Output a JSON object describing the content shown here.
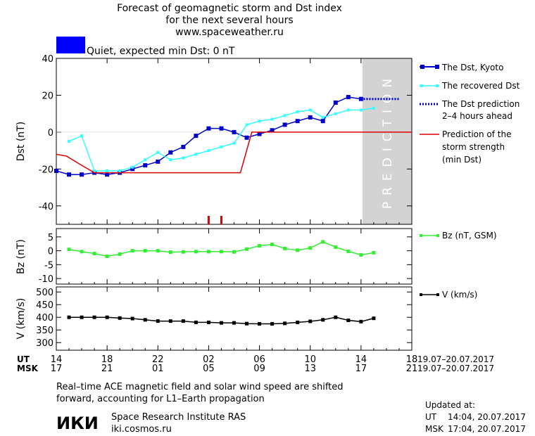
{
  "header": {
    "title_line1": "Forecast of geomagnetic storm and Dst index",
    "title_line2": "for the next several hours",
    "website": "www.spaceweather.ru"
  },
  "status": {
    "text": "Quiet, expected min Dst: 0 nT",
    "color": "#0000ff"
  },
  "prediction_label": "PREDICTION",
  "colors": {
    "dst_kyoto": "#0000cc",
    "dst_recovered": "#33ffff",
    "dst_prediction": "#0000cc",
    "storm_strength": "#e00000",
    "bz": "#33ee33",
    "v": "#000000",
    "prediction_shade": "#d3d3d3"
  },
  "time_axis": {
    "ut_label": "UT",
    "msk_label": "MSK",
    "ut_ticks": [
      "14",
      "18",
      "22",
      "02",
      "06",
      "10",
      "14",
      "18"
    ],
    "msk_ticks": [
      "17",
      "21",
      "01",
      "05",
      "09",
      "13",
      "17",
      "21"
    ],
    "ut_range": "19.07–20.07.2017",
    "msk_range": "19.07–20.07.2017"
  },
  "chart_data": [
    {
      "type": "line",
      "ylabel": "Dst (nT)",
      "ylim": [
        -50,
        40
      ],
      "yticks": [
        -40,
        -20,
        0,
        20,
        40
      ],
      "x_unit": "hours from 14:00 UT 19.07.2017",
      "xlim": [
        0,
        28
      ],
      "prediction_from_x": 24,
      "storm_markers_x": [
        12,
        13
      ],
      "series": [
        {
          "name": "The Dst, Kyoto",
          "x": [
            0,
            1,
            2,
            3,
            4,
            5,
            6,
            7,
            8,
            9,
            10,
            11,
            12,
            13,
            14,
            15,
            16,
            17,
            18,
            19,
            20,
            21,
            22,
            23,
            24
          ],
          "y": [
            -21,
            -23,
            -23,
            -22,
            -23,
            -22,
            -20,
            -18,
            -16,
            -11,
            -8,
            -2,
            2,
            2,
            0,
            -3,
            -1,
            1,
            4,
            6,
            8,
            6,
            16,
            19,
            18
          ]
        },
        {
          "name": "The recovered Dst",
          "x": [
            1,
            2,
            3,
            4,
            5,
            6,
            7,
            8,
            9,
            10,
            11,
            12,
            13,
            14,
            15,
            16,
            17,
            18,
            19,
            20,
            21,
            22,
            23,
            24,
            25
          ],
          "y": [
            -5,
            -2,
            -21,
            -21,
            -21,
            -19,
            -15,
            -11,
            -15,
            -14,
            -12,
            -10,
            -8,
            -6,
            4,
            6,
            7,
            9,
            11,
            12,
            8,
            10,
            12,
            12,
            13
          ]
        },
        {
          "name": "The Dst prediction 2–4 hours ahead",
          "x": [
            24,
            28
          ],
          "y": [
            18,
            18
          ]
        },
        {
          "name": "Prediction of the storm strength (min Dst)",
          "x": [
            0,
            0.8,
            2,
            3,
            14.5,
            15.4,
            28
          ],
          "y": [
            -12,
            -13,
            -18,
            -22,
            -22,
            0,
            0
          ]
        }
      ],
      "legend": [
        "The Dst, Kyoto",
        "The recovered Dst",
        "The Dst prediction",
        "2–4 hours ahead",
        "Prediction of the",
        "storm strength",
        "(min Dst)"
      ]
    },
    {
      "type": "line",
      "ylabel": "Bz (nT)",
      "ylim": [
        -12,
        8
      ],
      "yticks": [
        -10,
        -5,
        0,
        5
      ],
      "series": [
        {
          "name": "Bz (nT, GSM)",
          "x": [
            1,
            2,
            3,
            4,
            5,
            6,
            7,
            8,
            9,
            10,
            11,
            12,
            13,
            14,
            15,
            16,
            17,
            18,
            19,
            20,
            21,
            22,
            23,
            24,
            25
          ],
          "y": [
            0.5,
            -0.3,
            -1.0,
            -2.0,
            -1.2,
            0.0,
            0.0,
            0.0,
            -0.5,
            -0.4,
            -0.3,
            -0.3,
            -0.3,
            -0.4,
            0.6,
            1.8,
            2.3,
            0.8,
            0.2,
            1.0,
            3.2,
            1.3,
            -0.2,
            -1.5,
            -0.7
          ]
        }
      ],
      "legend": [
        "Bz (nT, GSM)"
      ]
    },
    {
      "type": "line",
      "ylabel": "V (km/s)",
      "ylim": [
        270,
        520
      ],
      "yticks": [
        300,
        350,
        400,
        450,
        500
      ],
      "series": [
        {
          "name": "V (km/s)",
          "x": [
            1,
            2,
            3,
            4,
            5,
            6,
            7,
            8,
            9,
            10,
            11,
            12,
            13,
            14,
            15,
            16,
            17,
            18,
            19,
            20,
            21,
            22,
            23,
            24,
            25
          ],
          "y": [
            400,
            400,
            400,
            400,
            397,
            395,
            390,
            385,
            385,
            385,
            380,
            380,
            378,
            378,
            375,
            374,
            374,
            376,
            380,
            384,
            390,
            400,
            388,
            383,
            396
          ]
        }
      ],
      "legend": [
        "V (km/s)"
      ]
    }
  ],
  "footer": {
    "note_line1": "Real–time ACE magnetic field and solar wind speed are shifted",
    "note_line2": "forward, accounting for L1–Earth propagation",
    "logo_text": "ИКИ",
    "institute": "Space Research Institute RAS",
    "institute_url": "iki.cosmos.ru",
    "updated_label": "Updated at:",
    "updated_ut_label": "UT",
    "updated_ut": "14:04, 20.07.2017",
    "updated_msk_label": "MSK",
    "updated_msk": "17:04, 20.07.2017"
  }
}
